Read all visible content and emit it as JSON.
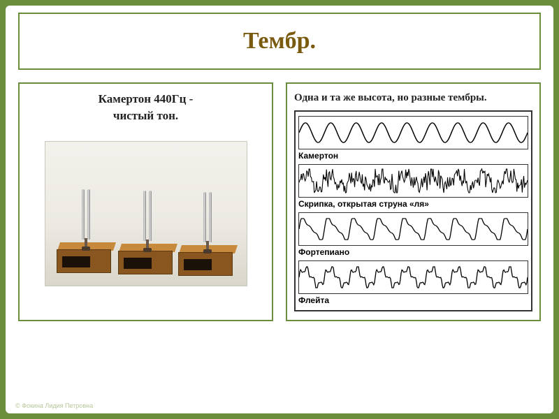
{
  "title": "Тембр.",
  "left": {
    "heading_l1": "Камертон  440Гц  -",
    "heading_l2": "чистый тон.",
    "image": {
      "background_gradient": [
        "#f3f1eb",
        "#d9d6cb"
      ],
      "fork_count": 3,
      "box_color": "#8a5620",
      "box_top_color": "#c78a3d",
      "hole_color": "#1a1108",
      "prong_color": "#bbbbbb"
    }
  },
  "right": {
    "heading": "Одна и та же высота, но разные тембры.",
    "waveforms": [
      {
        "label": "Камертон",
        "type": "sine",
        "cycles": 9,
        "amplitude": 0.7,
        "stroke": "#000000",
        "stroke_width": 1.4
      },
      {
        "label": "Скрипка, открытая струна «ля»",
        "type": "noise_periodic",
        "cycles": 9,
        "amplitude": 0.85,
        "stroke": "#000000",
        "stroke_width": 1.0
      },
      {
        "label": "Фортепиано",
        "type": "sawish",
        "cycles": 9,
        "amplitude": 0.75,
        "stroke": "#000000",
        "stroke_width": 1.2
      },
      {
        "label": "Флейта",
        "type": "spiky",
        "cycles": 9,
        "amplitude": 0.75,
        "stroke": "#000000",
        "stroke_width": 1.2
      }
    ]
  },
  "colors": {
    "slide_bg": "#ffffff",
    "page_bg": "#6b8e3d",
    "border": "#6b8e3d",
    "title_text": "#7a5a0f"
  },
  "footer_credit": "© Фокина Лидия Петровна"
}
